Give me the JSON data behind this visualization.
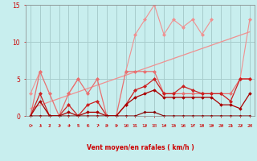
{
  "title": "",
  "xlabel": "Vent moyen/en rafales ( km/h )",
  "ylabel": "",
  "bg_color": "#c8eeee",
  "grid_color": "#a8cccc",
  "xlim": [
    -0.5,
    23.5
  ],
  "ylim": [
    0,
    15
  ],
  "yticks": [
    0,
    5,
    10,
    15
  ],
  "xticks": [
    0,
    1,
    2,
    3,
    4,
    5,
    6,
    7,
    8,
    9,
    10,
    11,
    12,
    13,
    14,
    15,
    16,
    17,
    18,
    19,
    20,
    21,
    22,
    23
  ],
  "series": [
    {
      "name": "rafales_peaks",
      "color": "#f09090",
      "linewidth": 0.8,
      "markersize": 2.0,
      "marker": "D",
      "y": [
        3,
        6,
        null,
        null,
        3,
        5,
        null,
        5,
        null,
        null,
        6,
        11,
        13,
        15,
        11,
        13,
        12,
        13,
        11,
        13,
        null,
        null,
        5,
        13
      ]
    },
    {
      "name": "rafales_trend",
      "color": "#f09090",
      "linewidth": 0.9,
      "markersize": 0,
      "marker": null,
      "linestyle": "-",
      "y": [
        1.0,
        1.45,
        1.9,
        2.35,
        2.8,
        3.25,
        3.7,
        4.15,
        4.6,
        5.05,
        5.5,
        5.95,
        6.4,
        6.85,
        7.3,
        7.75,
        8.2,
        8.65,
        9.1,
        9.55,
        10.0,
        10.45,
        10.9,
        11.35
      ]
    },
    {
      "name": "vent_max",
      "color": "#e87070",
      "linewidth": 0.9,
      "markersize": 2.0,
      "marker": "D",
      "y": [
        0,
        6,
        3,
        0,
        3,
        5,
        3,
        5,
        0,
        0,
        6,
        6,
        6,
        6,
        3,
        3,
        3,
        3,
        3,
        3,
        3,
        3,
        5,
        5
      ]
    },
    {
      "name": "vent_moy",
      "color": "#cc2020",
      "linewidth": 0.9,
      "markersize": 2.0,
      "marker": "D",
      "y": [
        0,
        3,
        0,
        0,
        1.5,
        0,
        1.5,
        2,
        0,
        0,
        1.5,
        3.5,
        4,
        5,
        3,
        3,
        4,
        3.5,
        3,
        3,
        3,
        2,
        5,
        5
      ]
    },
    {
      "name": "vent_base",
      "color": "#aa0000",
      "linewidth": 0.9,
      "markersize": 1.8,
      "marker": "D",
      "y": [
        0,
        2,
        0,
        0,
        0.5,
        0,
        0.5,
        0.5,
        0,
        0,
        1.5,
        2.5,
        3,
        3.5,
        2.5,
        2.5,
        2.5,
        2.5,
        2.5,
        2.5,
        1.5,
        1.5,
        1,
        3
      ]
    },
    {
      "name": "vent_min",
      "color": "#880000",
      "linewidth": 0.8,
      "markersize": 1.5,
      "marker": "D",
      "y": [
        0,
        0,
        0,
        0,
        0,
        0,
        0,
        0,
        0,
        0,
        0,
        0,
        0.5,
        0.5,
        0,
        0,
        0,
        0,
        0,
        0,
        0,
        0,
        0,
        0
      ]
    }
  ],
  "arrows": [
    [
      0,
      "NE"
    ],
    [
      1,
      "NE"
    ],
    [
      2,
      "N"
    ],
    [
      3,
      "NE"
    ],
    [
      4,
      "NE"
    ],
    [
      5,
      "N"
    ],
    [
      6,
      "N"
    ],
    [
      7,
      "NE"
    ],
    [
      8,
      "NE"
    ],
    [
      9,
      "NE"
    ],
    [
      10,
      "NE"
    ],
    [
      11,
      "N"
    ],
    [
      12,
      "NE"
    ],
    [
      13,
      "N"
    ],
    [
      14,
      "NE"
    ],
    [
      15,
      "NE"
    ],
    [
      16,
      "NE"
    ],
    [
      17,
      "NE"
    ],
    [
      18,
      "NE"
    ],
    [
      19,
      "NE"
    ],
    [
      20,
      "NE"
    ],
    [
      21,
      "NE"
    ],
    [
      22,
      "NE"
    ],
    [
      23,
      "NE"
    ]
  ],
  "xlabel_color": "#cc0000",
  "tick_color": "#cc0000",
  "axis_color": "#888888",
  "ytick_labels": [
    "0",
    "5",
    "10",
    "15"
  ]
}
